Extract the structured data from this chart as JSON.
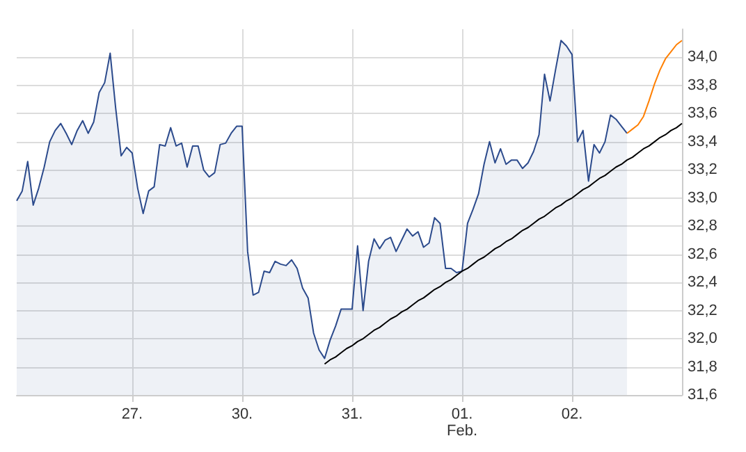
{
  "chart_data": {
    "type": "area",
    "grid": true,
    "categories": [
      null,
      null,
      null,
      null,
      null,
      null,
      null,
      null,
      null,
      null,
      null,
      null,
      null,
      null,
      null,
      null,
      null,
      null,
      null,
      null,
      null,
      "27.",
      null,
      null,
      null,
      null,
      null,
      null,
      null,
      null,
      null,
      null,
      null,
      null,
      null,
      null,
      null,
      null,
      null,
      null,
      null,
      "30.",
      null,
      null,
      null,
      null,
      null,
      null,
      null,
      null,
      null,
      null,
      null,
      null,
      null,
      null,
      null,
      null,
      null,
      null,
      null,
      "31.",
      null,
      null,
      null,
      null,
      null,
      null,
      null,
      null,
      null,
      null,
      null,
      null,
      null,
      null,
      null,
      null,
      null,
      null,
      null,
      "01.\nFeb.",
      null,
      null,
      null,
      null,
      null,
      null,
      null,
      null,
      null,
      null,
      null,
      null,
      null,
      null,
      null,
      null,
      null,
      null,
      null,
      "02.",
      null,
      null,
      null,
      null,
      null,
      null,
      null,
      null,
      null,
      null,
      null,
      null,
      null,
      null,
      null,
      null,
      null,
      null,
      null,
      null
    ],
    "ylim": [
      31.6,
      34.2
    ],
    "yticks": [
      {
        "value": 31.6,
        "label": "31,6"
      },
      {
        "value": 31.8,
        "label": "31,8"
      },
      {
        "value": 32.0,
        "label": "32,0"
      },
      {
        "value": 32.2,
        "label": "32,2"
      },
      {
        "value": 32.4,
        "label": "32,4"
      },
      {
        "value": 32.6,
        "label": "32,6"
      },
      {
        "value": 32.8,
        "label": "32,8"
      },
      {
        "value": 33.0,
        "label": "33,0"
      },
      {
        "value": 33.2,
        "label": "33,2"
      },
      {
        "value": 33.4,
        "label": "33,4"
      },
      {
        "value": 33.6,
        "label": "33,6"
      },
      {
        "value": 33.8,
        "label": "33,8"
      },
      {
        "value": 34.0,
        "label": "34,0"
      }
    ],
    "series": [
      {
        "color": "#2b4a8c",
        "values": [
          32.98,
          33.05,
          33.26,
          32.95,
          33.07,
          33.22,
          33.4,
          33.48,
          33.53,
          33.46,
          33.38,
          33.48,
          33.55,
          33.46,
          33.54,
          33.75,
          33.82,
          34.03,
          33.64,
          33.3,
          33.36,
          33.32,
          33.07,
          32.89,
          33.05,
          33.08,
          33.38,
          33.37,
          33.5,
          33.37,
          33.39,
          33.22,
          33.37,
          33.37,
          33.2,
          33.15,
          33.18,
          33.38,
          33.39,
          33.46,
          33.51,
          33.51,
          32.62,
          32.31,
          32.33,
          32.48,
          32.47,
          32.55,
          32.53,
          32.52,
          32.56,
          32.5,
          32.36,
          32.29,
          32.04,
          31.92,
          31.86,
          31.99,
          32.09,
          32.21,
          32.21,
          32.21,
          32.66,
          32.2,
          32.55,
          32.71,
          32.64,
          32.7,
          32.72,
          32.62,
          32.7,
          32.78,
          32.73,
          32.76,
          32.65,
          32.68,
          32.86,
          32.82,
          32.5,
          32.5,
          32.47,
          32.48,
          32.82,
          32.92,
          33.03,
          33.24,
          33.4,
          33.25,
          33.35,
          33.24,
          33.27,
          33.27,
          33.21,
          33.25,
          33.33,
          33.45,
          33.88,
          33.69,
          33.91,
          34.12,
          34.08,
          34.02,
          33.4,
          33.48,
          33.12,
          33.38,
          33.32,
          33.4,
          33.59,
          33.56,
          33.51,
          33.46,
          null,
          null,
          null,
          null,
          null,
          null,
          null,
          null,
          null,
          null
        ]
      },
      {
        "type": "line",
        "color": "#ff7f00",
        "values": [
          null,
          null,
          null,
          null,
          null,
          null,
          null,
          null,
          null,
          null,
          null,
          null,
          null,
          null,
          null,
          null,
          null,
          null,
          null,
          null,
          null,
          null,
          null,
          null,
          null,
          null,
          null,
          null,
          null,
          null,
          null,
          null,
          null,
          null,
          null,
          null,
          null,
          null,
          null,
          null,
          null,
          null,
          null,
          null,
          null,
          null,
          null,
          null,
          null,
          null,
          null,
          null,
          null,
          null,
          null,
          null,
          null,
          null,
          null,
          null,
          null,
          null,
          null,
          null,
          null,
          null,
          null,
          null,
          null,
          null,
          null,
          null,
          null,
          null,
          null,
          null,
          null,
          null,
          null,
          null,
          null,
          null,
          null,
          null,
          null,
          null,
          null,
          null,
          null,
          null,
          null,
          null,
          null,
          null,
          null,
          null,
          null,
          null,
          null,
          null,
          null,
          null,
          null,
          null,
          null,
          null,
          null,
          null,
          null,
          null,
          null,
          33.46,
          33.49,
          33.52,
          33.58,
          33.69,
          33.81,
          33.91,
          33.99,
          34.04,
          34.09,
          34.12
        ]
      },
      {
        "type": "line",
        "color": "#000000",
        "values": [
          null,
          null,
          null,
          null,
          null,
          null,
          null,
          null,
          null,
          null,
          null,
          null,
          null,
          null,
          null,
          null,
          null,
          null,
          null,
          null,
          null,
          null,
          null,
          null,
          null,
          null,
          null,
          null,
          null,
          null,
          null,
          null,
          null,
          null,
          null,
          null,
          null,
          null,
          null,
          null,
          null,
          null,
          null,
          null,
          null,
          null,
          null,
          null,
          null,
          null,
          null,
          null,
          null,
          null,
          null,
          null,
          31.82,
          31.85,
          31.87,
          31.9,
          31.93,
          31.95,
          31.98,
          32.0,
          32.03,
          32.06,
          32.08,
          32.11,
          32.14,
          32.16,
          32.19,
          32.21,
          32.24,
          32.27,
          32.29,
          32.32,
          32.35,
          32.37,
          32.4,
          32.42,
          32.45,
          32.48,
          32.5,
          32.53,
          32.56,
          32.58,
          32.61,
          32.64,
          32.66,
          32.69,
          32.71,
          32.74,
          32.77,
          32.79,
          32.82,
          32.85,
          32.87,
          32.9,
          32.93,
          32.95,
          32.98,
          33.0,
          33.03,
          33.06,
          33.08,
          33.11,
          33.14,
          33.16,
          33.19,
          33.22,
          33.24,
          33.27,
          33.29,
          33.32,
          33.35,
          33.37,
          33.4,
          33.43,
          33.45,
          33.48,
          33.5,
          33.53
        ]
      }
    ]
  }
}
